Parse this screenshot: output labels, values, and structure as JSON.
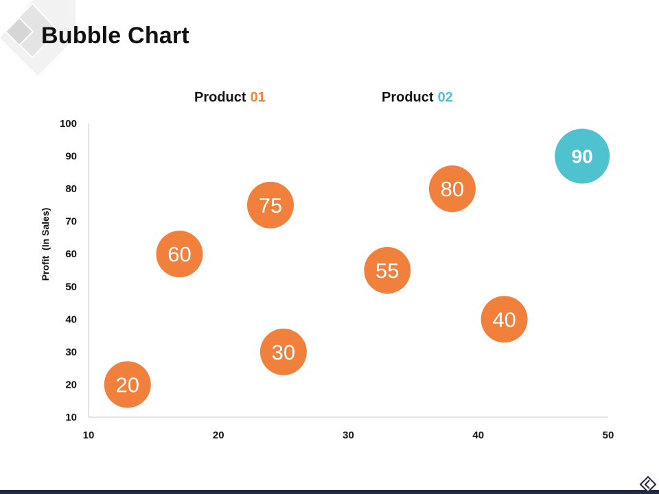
{
  "title": "Bubble Chart",
  "colors": {
    "product_01": "#f0803c",
    "product_02": "#4fc1cf",
    "axis": "#c8c8c8",
    "text": "#111111",
    "footer": "#1f2a44"
  },
  "legend": [
    {
      "prefix": "Product",
      "number": "01"
    },
    {
      "prefix": "Product",
      "number": "02"
    }
  ],
  "chart_data": {
    "type": "scatter",
    "title": "Bubble Chart",
    "xlabel": "",
    "ylabel": "Profit  (In Sales)",
    "xlim": [
      10,
      50
    ],
    "ylim": [
      10,
      100
    ],
    "xticks": [
      10,
      20,
      30,
      40,
      50
    ],
    "yticks": [
      10,
      20,
      30,
      40,
      50,
      60,
      70,
      80,
      90,
      100
    ],
    "grid": false,
    "legend_position": "top",
    "series": [
      {
        "name": "Product 01",
        "points": [
          {
            "x": 13,
            "y": 20,
            "label": "20"
          },
          {
            "x": 17,
            "y": 60,
            "label": "60"
          },
          {
            "x": 24,
            "y": 75,
            "label": "75"
          },
          {
            "x": 25,
            "y": 30,
            "label": "30"
          },
          {
            "x": 33,
            "y": 55,
            "label": "55"
          },
          {
            "x": 38,
            "y": 80,
            "label": "80"
          },
          {
            "x": 42,
            "y": 40,
            "label": "40"
          }
        ]
      },
      {
        "name": "Product 02",
        "points": [
          {
            "x": 48,
            "y": 90,
            "label": "90"
          }
        ]
      }
    ]
  }
}
